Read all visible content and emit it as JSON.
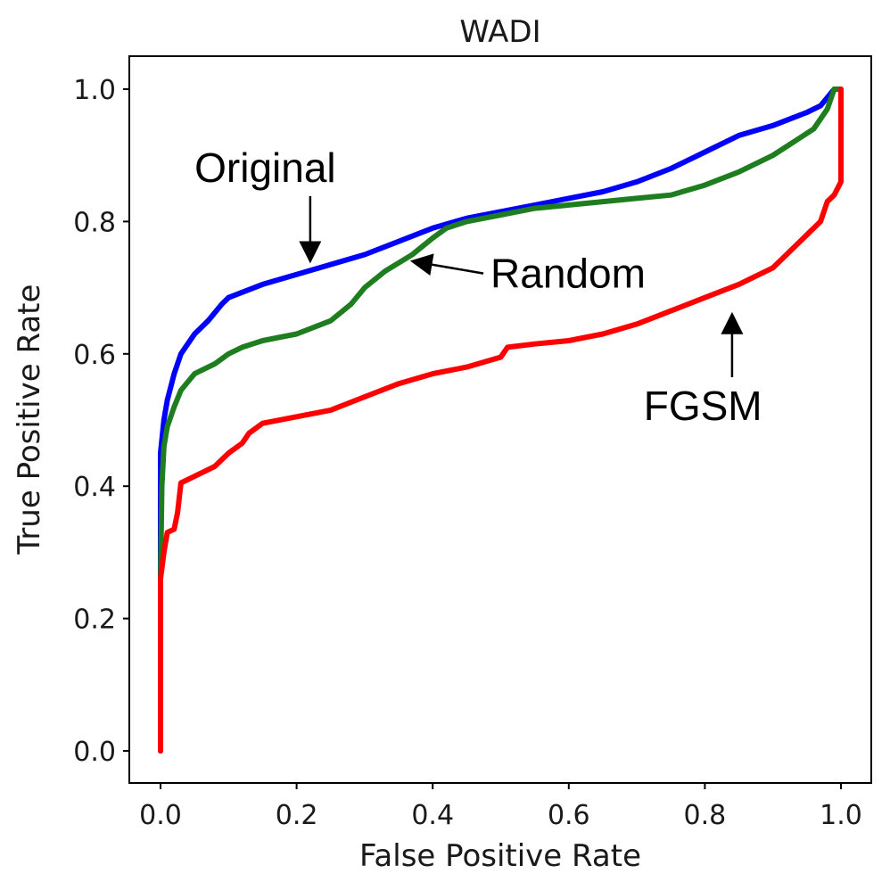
{
  "chart_data": {
    "type": "line",
    "title": "WADI",
    "xlabel": "False Positive Rate",
    "ylabel": "True Positive Rate",
    "xlim": [
      0.0,
      1.0
    ],
    "ylim": [
      0.0,
      1.0
    ],
    "xticks": [
      "0.0",
      "0.2",
      "0.4",
      "0.6",
      "0.8",
      "1.0"
    ],
    "yticks": [
      "0.0",
      "0.2",
      "0.4",
      "0.6",
      "0.8",
      "1.0"
    ],
    "grid": false,
    "series": [
      {
        "name": "Original",
        "color": "#0000ff",
        "points": [
          [
            0.0,
            0.0
          ],
          [
            0.0,
            0.45
          ],
          [
            0.005,
            0.5
          ],
          [
            0.01,
            0.53
          ],
          [
            0.02,
            0.57
          ],
          [
            0.03,
            0.6
          ],
          [
            0.05,
            0.63
          ],
          [
            0.07,
            0.65
          ],
          [
            0.09,
            0.675
          ],
          [
            0.1,
            0.685
          ],
          [
            0.15,
            0.705
          ],
          [
            0.2,
            0.72
          ],
          [
            0.25,
            0.735
          ],
          [
            0.3,
            0.75
          ],
          [
            0.35,
            0.77
          ],
          [
            0.4,
            0.79
          ],
          [
            0.45,
            0.805
          ],
          [
            0.5,
            0.815
          ],
          [
            0.55,
            0.825
          ],
          [
            0.6,
            0.835
          ],
          [
            0.65,
            0.845
          ],
          [
            0.7,
            0.86
          ],
          [
            0.75,
            0.88
          ],
          [
            0.8,
            0.905
          ],
          [
            0.85,
            0.93
          ],
          [
            0.9,
            0.945
          ],
          [
            0.95,
            0.965
          ],
          [
            0.97,
            0.975
          ],
          [
            0.99,
            1.0
          ],
          [
            1.0,
            1.0
          ]
        ]
      },
      {
        "name": "Random",
        "color": "#1e7d1e",
        "points": [
          [
            0.0,
            0.0
          ],
          [
            0.0,
            0.26
          ],
          [
            0.002,
            0.4
          ],
          [
            0.005,
            0.46
          ],
          [
            0.01,
            0.49
          ],
          [
            0.02,
            0.52
          ],
          [
            0.03,
            0.545
          ],
          [
            0.05,
            0.57
          ],
          [
            0.08,
            0.585
          ],
          [
            0.1,
            0.6
          ],
          [
            0.12,
            0.61
          ],
          [
            0.15,
            0.62
          ],
          [
            0.2,
            0.63
          ],
          [
            0.25,
            0.65
          ],
          [
            0.28,
            0.675
          ],
          [
            0.3,
            0.7
          ],
          [
            0.33,
            0.725
          ],
          [
            0.37,
            0.75
          ],
          [
            0.4,
            0.775
          ],
          [
            0.42,
            0.79
          ],
          [
            0.45,
            0.8
          ],
          [
            0.5,
            0.81
          ],
          [
            0.55,
            0.82
          ],
          [
            0.6,
            0.825
          ],
          [
            0.65,
            0.83
          ],
          [
            0.7,
            0.835
          ],
          [
            0.75,
            0.84
          ],
          [
            0.8,
            0.855
          ],
          [
            0.85,
            0.875
          ],
          [
            0.9,
            0.9
          ],
          [
            0.93,
            0.92
          ],
          [
            0.96,
            0.94
          ],
          [
            0.98,
            0.97
          ],
          [
            0.99,
            1.0
          ],
          [
            1.0,
            1.0
          ]
        ]
      },
      {
        "name": "FGSM",
        "color": "#ff0000",
        "points": [
          [
            0.0,
            0.0
          ],
          [
            0.0,
            0.26
          ],
          [
            0.005,
            0.3
          ],
          [
            0.01,
            0.33
          ],
          [
            0.02,
            0.335
          ],
          [
            0.025,
            0.36
          ],
          [
            0.03,
            0.405
          ],
          [
            0.05,
            0.415
          ],
          [
            0.08,
            0.43
          ],
          [
            0.1,
            0.45
          ],
          [
            0.12,
            0.465
          ],
          [
            0.13,
            0.48
          ],
          [
            0.15,
            0.495
          ],
          [
            0.2,
            0.505
          ],
          [
            0.25,
            0.515
          ],
          [
            0.3,
            0.535
          ],
          [
            0.35,
            0.555
          ],
          [
            0.4,
            0.57
          ],
          [
            0.45,
            0.58
          ],
          [
            0.5,
            0.595
          ],
          [
            0.51,
            0.61
          ],
          [
            0.55,
            0.615
          ],
          [
            0.6,
            0.62
          ],
          [
            0.65,
            0.63
          ],
          [
            0.7,
            0.645
          ],
          [
            0.75,
            0.665
          ],
          [
            0.8,
            0.685
          ],
          [
            0.85,
            0.705
          ],
          [
            0.9,
            0.73
          ],
          [
            0.95,
            0.78
          ],
          [
            0.97,
            0.8
          ],
          [
            0.98,
            0.83
          ],
          [
            0.99,
            0.84
          ],
          [
            1.0,
            0.86
          ],
          [
            1.0,
            1.0
          ]
        ]
      }
    ],
    "annotations": [
      {
        "text": "Original",
        "x": 0.05,
        "y": 0.86,
        "arrow_to": [
          0.22,
          0.74
        ]
      },
      {
        "text": "Random",
        "x": 0.485,
        "y": 0.7,
        "arrow_to": [
          0.37,
          0.74
        ]
      },
      {
        "text": "FGSM",
        "x": 0.71,
        "y": 0.5,
        "arrow_to": [
          0.84,
          0.66
        ]
      }
    ]
  }
}
